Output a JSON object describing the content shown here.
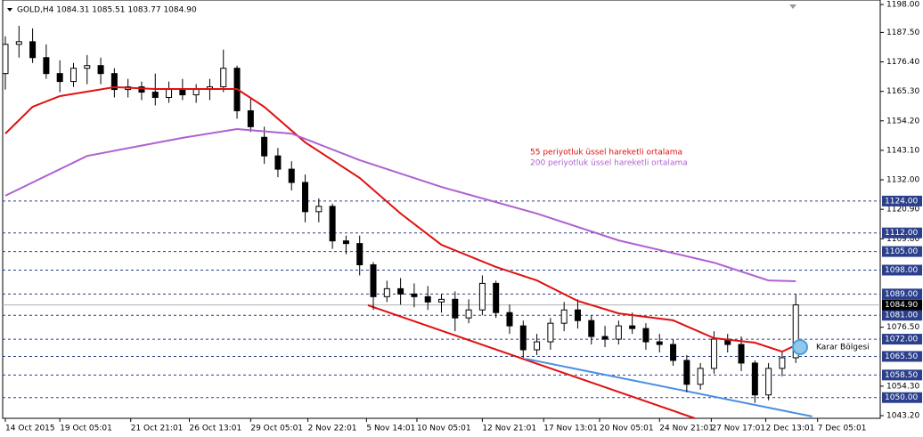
{
  "chart_data": {
    "type": "candlestick",
    "header": "GOLD,H4  1084.31 1085.51 1083.77 1084.90",
    "xlim": [
      0,
      64
    ],
    "ylim": [
      1042.2,
      1199.7
    ],
    "xticks": [
      {
        "value": 0,
        "label": "14 Oct 2015"
      },
      {
        "value": 4,
        "label": "19 Oct 05:01"
      },
      {
        "value": 9.2,
        "label": "21 Oct 21:01"
      },
      {
        "value": 13.5,
        "label": "26 Oct 13:01"
      },
      {
        "value": 18,
        "label": "29 Oct 05:01"
      },
      {
        "value": 22.2,
        "label": "2 Nov 22:01"
      },
      {
        "value": 26.5,
        "label": "5 Nov 14:01"
      },
      {
        "value": 30.2,
        "label": "10 Nov 05:01"
      },
      {
        "value": 35,
        "label": "12 Nov 21:01"
      },
      {
        "value": 39.5,
        "label": "17 Nov 13:01"
      },
      {
        "value": 43.6,
        "label": "20 Nov 05:01"
      },
      {
        "value": 48,
        "label": "24 Nov 21:01"
      },
      {
        "value": 51.8,
        "label": "27 Nov 17:01"
      },
      {
        "value": 55.8,
        "label": "2 Dec 13:01"
      },
      {
        "value": 59.6,
        "label": "7 Dec 05:01"
      }
    ],
    "yticks": [
      {
        "value": 1198,
        "label": "1198.00"
      },
      {
        "value": 1187.5,
        "label": "1187.50"
      },
      {
        "value": 1176.4,
        "label": "1176.40"
      },
      {
        "value": 1165.3,
        "label": "1165.30"
      },
      {
        "value": 1154.2,
        "label": "1154.20"
      },
      {
        "value": 1143.1,
        "label": "1143.10"
      },
      {
        "value": 1132,
        "label": "1132.00"
      },
      {
        "value": 1120.9,
        "label": "1120.90"
      },
      {
        "value": 1109.8,
        "label": "1109.80"
      },
      {
        "value": 1076.5,
        "label": "1076.50"
      },
      {
        "value": 1054.3,
        "label": "1054.30"
      },
      {
        "value": 1043.2,
        "label": "1043.20"
      }
    ],
    "levels": [
      {
        "value": 1124,
        "label": "1124.00"
      },
      {
        "value": 1112,
        "label": "1112.00"
      },
      {
        "value": 1105,
        "label": "1105.00"
      },
      {
        "value": 1098,
        "label": "1098.00"
      },
      {
        "value": 1089,
        "label": "1089.00"
      },
      {
        "value": 1081,
        "label": "1081.00"
      },
      {
        "value": 1072,
        "label": "1072.00"
      },
      {
        "value": 1065.5,
        "label": "1065.50"
      },
      {
        "value": 1058.5,
        "label": "1058.50"
      },
      {
        "value": 1050,
        "label": "1050.00"
      }
    ],
    "level_color": "#2b3f8c",
    "current_price": {
      "value": 1084.9,
      "label": "1084.90"
    },
    "open": [
      1172,
      1183,
      1184,
      1178,
      1172,
      1169,
      1174,
      1175,
      1172,
      1166,
      1167,
      1165,
      1163,
      1166,
      1164,
      1166,
      1167,
      1174,
      1158,
      1148,
      1141,
      1136,
      1131,
      1120,
      1122,
      1109,
      1108,
      1100,
      1088,
      1091,
      1089,
      1088,
      1086,
      1087,
      1080,
      1083,
      1093,
      1082,
      1077,
      1068,
      1071,
      1078,
      1083,
      1079,
      1073,
      1072,
      1077,
      1076,
      1071,
      1070,
      1064,
      1055,
      1061,
      1072,
      1070,
      1063,
      1051,
      1061,
      1065
    ],
    "high": [
      1186,
      1190,
      1189,
      1183,
      1177,
      1176,
      1179,
      1178,
      1174,
      1170,
      1169,
      1172,
      1169,
      1170,
      1168,
      1170,
      1181,
      1175,
      1163,
      1152,
      1144,
      1139,
      1134,
      1125,
      1123,
      1111,
      1111,
      1101,
      1094,
      1095,
      1093,
      1092,
      1089,
      1090,
      1087,
      1096,
      1094,
      1085,
      1079,
      1074,
      1080,
      1086,
      1087,
      1081,
      1077,
      1079,
      1082,
      1078,
      1074,
      1072,
      1066,
      1063,
      1075,
      1074,
      1073,
      1064,
      1063,
      1067,
      1089
    ],
    "low": [
      1166,
      1178,
      1176,
      1170,
      1165,
      1167,
      1168,
      1168,
      1163,
      1163,
      1162,
      1160,
      1161,
      1162,
      1161,
      1162,
      1165,
      1155,
      1150,
      1138,
      1133,
      1128,
      1116,
      1116,
      1106,
      1104,
      1096,
      1083,
      1086,
      1085,
      1084,
      1083,
      1082,
      1075,
      1078,
      1081,
      1080,
      1074,
      1065,
      1066,
      1068,
      1075,
      1076,
      1070,
      1069,
      1070,
      1074,
      1068,
      1067,
      1062,
      1052,
      1053,
      1059,
      1067,
      1060,
      1048,
      1049,
      1058,
      1063
    ],
    "close": [
      1183,
      1184,
      1178,
      1172,
      1169,
      1174,
      1175,
      1172,
      1166,
      1167,
      1165,
      1163,
      1166,
      1164,
      1166,
      1167,
      1174,
      1158,
      1152,
      1141,
      1136,
      1131,
      1120,
      1122,
      1109,
      1108,
      1100,
      1088,
      1091,
      1089,
      1088,
      1086,
      1087,
      1080,
      1083,
      1093,
      1082,
      1077,
      1068,
      1071,
      1078,
      1083,
      1079,
      1073,
      1072,
      1077,
      1076,
      1071,
      1070,
      1064,
      1055,
      1061,
      1072,
      1070,
      1063,
      1051,
      1061,
      1065,
      1084.9
    ],
    "series": [
      {
        "name": "55 periyotluk üssel hareketli ortalama",
        "color": "#e01010",
        "x": [
          0,
          2,
          4,
          8,
          11,
          15,
          17,
          19,
          22,
          26,
          29,
          32,
          36,
          39,
          42,
          45,
          49,
          52,
          55,
          57,
          58
        ],
        "values": [
          1149.4,
          1159.5,
          1163.5,
          1166.9,
          1166.2,
          1166.2,
          1166.2,
          1159.5,
          1146.1,
          1132.7,
          1119.3,
          1107.5,
          1099.2,
          1094.1,
          1086.4,
          1081.7,
          1079.1,
          1072.4,
          1070.7,
          1067.3,
          1069.7
        ]
      },
      {
        "name": "200 periyotluk üssel hareketli ortalama",
        "color": "#b060d0",
        "x": [
          0,
          6,
          13,
          17,
          21,
          26,
          32,
          39,
          45,
          52,
          56,
          58
        ],
        "values": [
          1126,
          1141,
          1147.8,
          1151.1,
          1149.4,
          1139.4,
          1129.3,
          1119.3,
          1109.2,
          1100.8,
          1094.1,
          1093.8
        ]
      }
    ],
    "trendlines": [
      {
        "color": "#e01010",
        "x": [
          26.6,
          50.6
        ],
        "values": [
          1084.8,
          1042.2
        ]
      },
      {
        "color": "#4a90e2",
        "x": [
          38.2,
          59.2
        ],
        "values": [
          1064.6,
          1042.9
        ]
      }
    ],
    "annotation": "Karar Bölgesi"
  }
}
